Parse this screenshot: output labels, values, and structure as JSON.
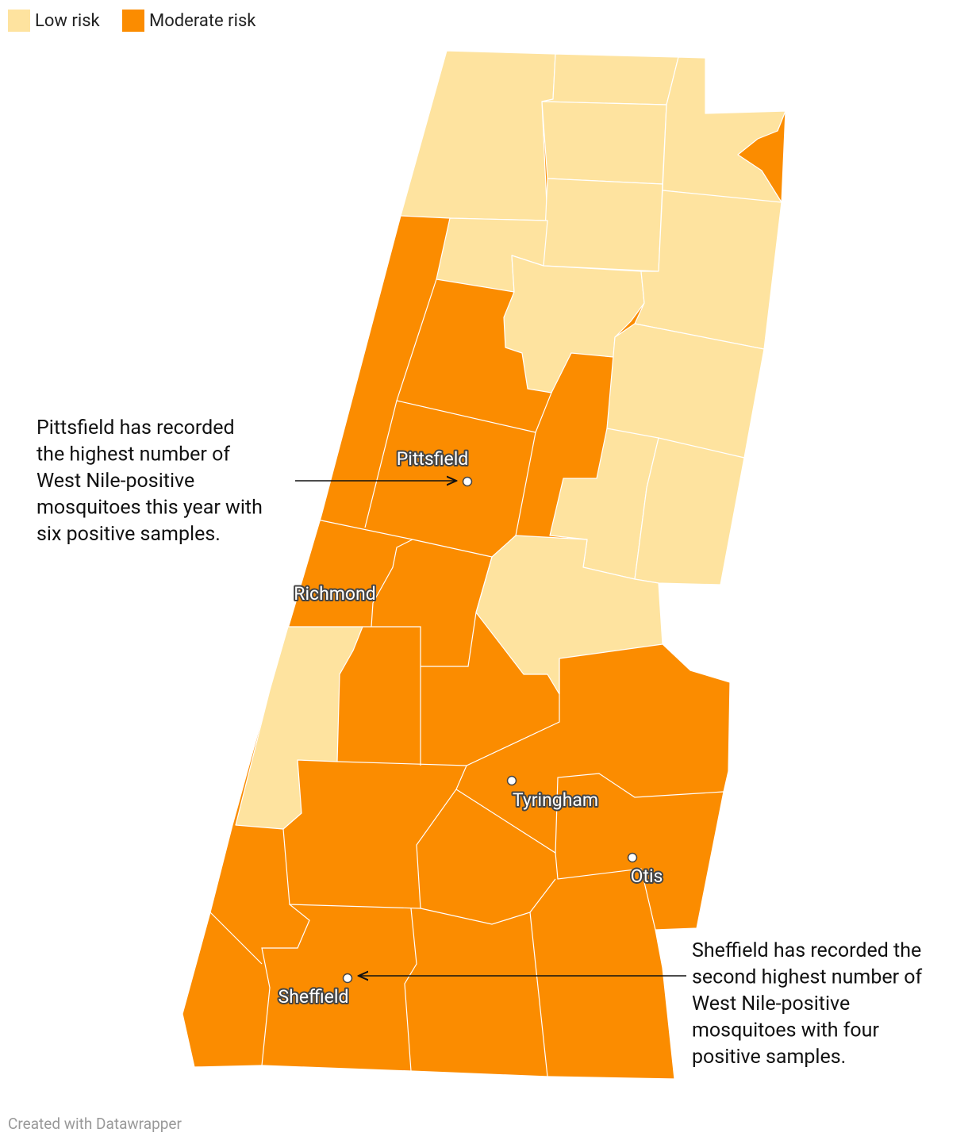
{
  "legend": [
    {
      "label": "Low risk",
      "color": "#fee39f"
    },
    {
      "label": "Moderate risk",
      "color": "#fb8c00"
    }
  ],
  "places": [
    "Pittsfield",
    "Richmond",
    "Tyringham",
    "Otis",
    "Sheffield"
  ],
  "annotations": [
    {
      "lines": [
        "Pittsfield has recorded",
        "the highest number of",
        "West Nile-positive",
        "mosquitoes this year with",
        "six positive samples."
      ]
    },
    {
      "lines": [
        "Sheffield has recorded the",
        "second highest number of",
        "West Nile-positive",
        "mosquitoes with four",
        "positive samples."
      ]
    }
  ],
  "footer": "Created with Datawrapper"
}
